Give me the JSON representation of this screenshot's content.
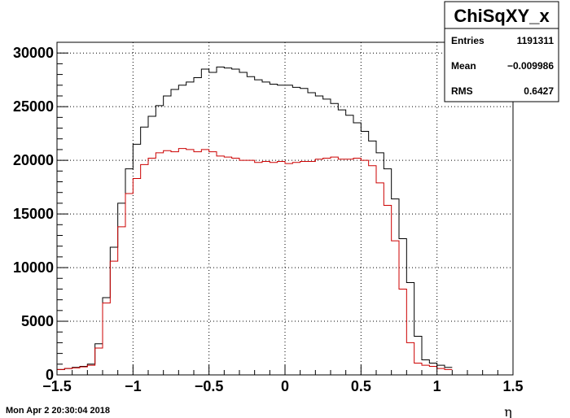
{
  "chart_data": {
    "type": "step-histogram",
    "title": "",
    "xlabel": "η",
    "ylabel": "",
    "xlim": [
      -1.5,
      1.5
    ],
    "ylim": [
      0,
      31000
    ],
    "grid": true,
    "x_ticks": [
      -1.5,
      -1,
      -0.5,
      0,
      0.5,
      1,
      1.5
    ],
    "x_tick_labels": [
      "−1.5",
      "−1",
      "−0.5",
      "0",
      "0.5",
      "1",
      "1.5"
    ],
    "y_ticks": [
      0,
      5000,
      10000,
      15000,
      20000,
      25000,
      30000
    ],
    "y_tick_labels": [
      "0",
      "5000",
      "10000",
      "15000",
      "20000",
      "25000",
      "30000"
    ],
    "bin_edges_start": -1.5,
    "bin_width": 0.05,
    "series": [
      {
        "color": "#000000",
        "values": [
          500,
          600,
          700,
          800,
          1000,
          2900,
          7200,
          11900,
          16000,
          19200,
          21500,
          23100,
          24100,
          25100,
          26000,
          26600,
          27000,
          27300,
          27700,
          28500,
          28200,
          28700,
          28600,
          28500,
          28200,
          27800,
          27500,
          27300,
          27100,
          27000,
          27000,
          26800,
          26700,
          26300,
          26000,
          25700,
          25300,
          24700,
          24200,
          23500,
          22700,
          21800,
          20700,
          19200,
          16400,
          12700,
          8600,
          3600,
          1400,
          1100,
          900,
          700
        ]
      },
      {
        "color": "#cc0000",
        "values": [
          500,
          600,
          650,
          750,
          900,
          2500,
          6700,
          10600,
          13800,
          16900,
          18300,
          19600,
          20200,
          20700,
          20900,
          20800,
          21100,
          21000,
          20800,
          21000,
          20800,
          20400,
          20300,
          20200,
          20000,
          20000,
          19800,
          19900,
          19800,
          19900,
          19700,
          19800,
          19900,
          19900,
          20100,
          20200,
          20300,
          20100,
          20100,
          20200,
          20000,
          19500,
          17900,
          15800,
          12500,
          8000,
          3000,
          1100,
          900,
          800,
          600,
          500
        ]
      }
    ],
    "stats_box": {
      "name": "ChiSqXY_x",
      "rows": [
        {
          "label": "Entries",
          "value": "1191311"
        },
        {
          "label": "Mean",
          "value": "−0.009986"
        },
        {
          "label": "RMS",
          "value": "0.6427"
        }
      ]
    },
    "timestamp": "Mon Apr  2 20:30:04 2018"
  }
}
